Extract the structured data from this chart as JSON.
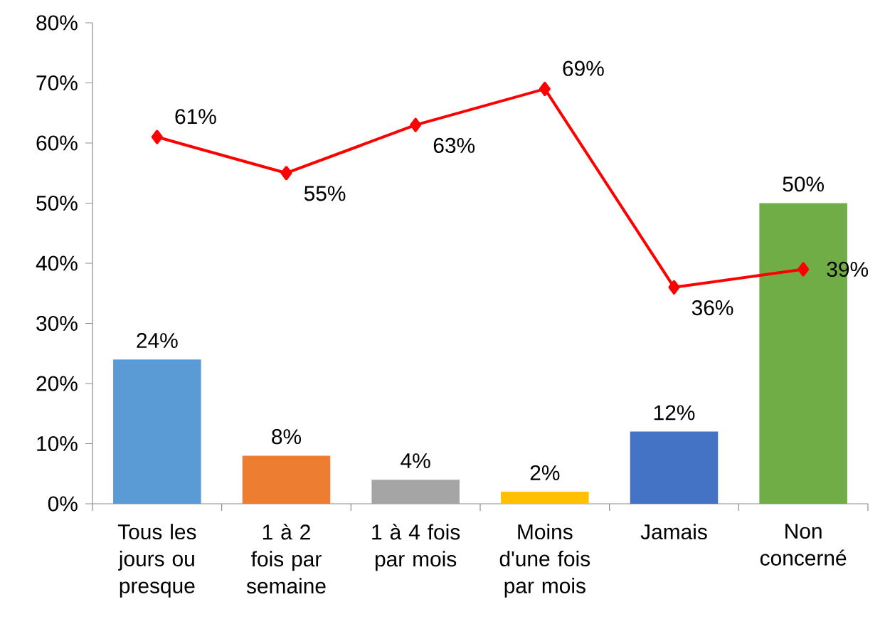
{
  "chart_data": {
    "type": "bar",
    "categories": [
      "Tous les jours ou presque",
      "1 à 2 fois par semaine",
      "1 à 4 fois par mois",
      "Moins d'une fois par mois",
      "Jamais",
      "Non concerné"
    ],
    "series": [
      {
        "colors": [
          "#5b9bd5",
          "#ed7d31",
          "#a5a5a5",
          "#ffc000",
          "#4472c4",
          "#70ad47"
        ],
        "values": [
          24,
          8,
          4,
          2,
          12,
          50
        ],
        "value_labels": [
          "24%",
          "8%",
          "4%",
          "2%",
          "12%",
          "50%"
        ]
      },
      {
        "type": "line",
        "color": "#ff0000",
        "marker": "diamond",
        "values": [
          61,
          55,
          63,
          69,
          36,
          39
        ],
        "value_labels": [
          "61%",
          "55%",
          "63%",
          "69%",
          "36%",
          "39%"
        ]
      }
    ],
    "ylim": [
      0,
      80
    ],
    "yticks": [
      {
        "value": 0,
        "label": "0%"
      },
      {
        "value": 10,
        "label": "10%"
      },
      {
        "value": 20,
        "label": "20%"
      },
      {
        "value": 30,
        "label": "30%"
      },
      {
        "value": 40,
        "label": "40%"
      },
      {
        "value": 50,
        "label": "50%"
      },
      {
        "value": 60,
        "label": "60%"
      },
      {
        "value": 70,
        "label": "70%"
      },
      {
        "value": 80,
        "label": "80%"
      }
    ],
    "grid": false
  }
}
